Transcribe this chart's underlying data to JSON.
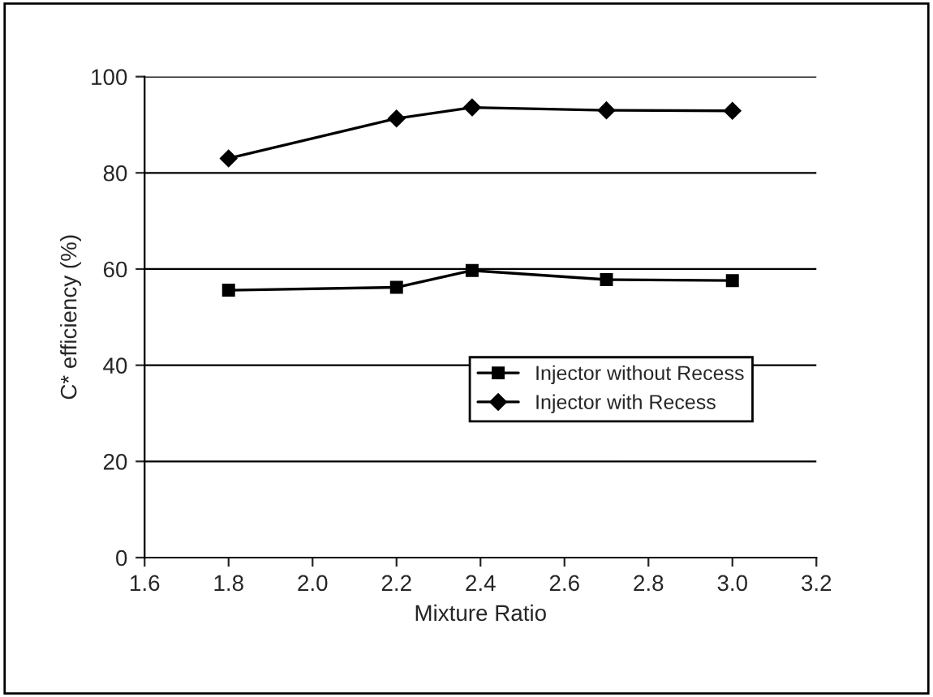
{
  "chart_data": {
    "type": "line",
    "xlabel": "Mixture Ratio",
    "ylabel": "C* efficiency (%)",
    "x": [
      1.8,
      2.2,
      2.38,
      2.7,
      3.0
    ],
    "series": [
      {
        "name": "Injector without Recess",
        "color": "#000000",
        "marker": "square",
        "values": [
          55.6,
          56.2,
          59.7,
          57.8,
          57.6
        ]
      },
      {
        "name": "Injector with Recess",
        "color": "#000000",
        "marker": "diamond",
        "values": [
          83.0,
          91.3,
          93.6,
          93.0,
          92.9
        ]
      }
    ],
    "xlim": [
      1.6,
      3.2
    ],
    "xticks": [
      1.6,
      {
        "value": 2.0,
        "label": "2.0"
      },
      1.8,
      2.2,
      2.4,
      2.6,
      2.8,
      {
        "value": 3.0,
        "label": "3.0"
      },
      3.2
    ],
    "ylim": [
      0,
      100
    ],
    "yticks": [
      0,
      20,
      40,
      60,
      80,
      100
    ],
    "grid": "y",
    "legend": "center right",
    "line_style": "solid"
  }
}
